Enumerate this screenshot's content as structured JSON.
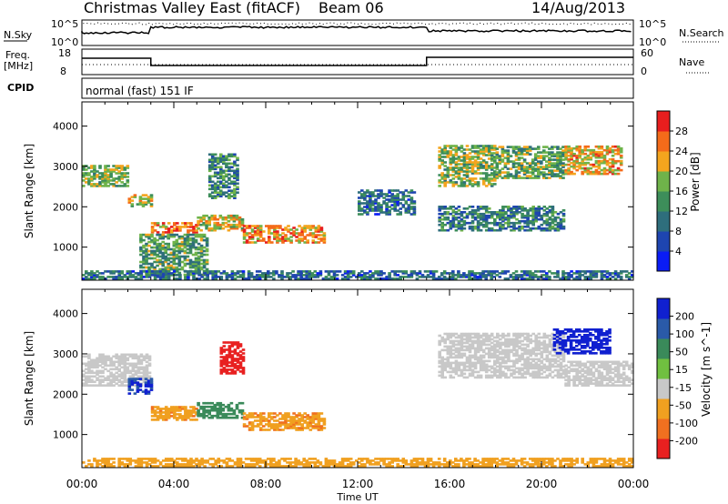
{
  "header": {
    "title": "Christmas Valley East (fitACF)",
    "beam": "Beam 06",
    "date": "14/Aug/2013"
  },
  "noise_panel": {
    "left_label": "N.Sky",
    "right_label": "N.Search",
    "left_ticks": [
      "10^5",
      "10^0"
    ],
    "right_ticks": [
      "10^5",
      "10^0"
    ]
  },
  "freq_panel": {
    "left_label": "Freq.",
    "left_unit": "[MHz]",
    "right_label": "Nave",
    "left_ticks": [
      "18",
      "8"
    ],
    "right_ticks": [
      "60",
      "0"
    ]
  },
  "cpid": {
    "label": "CPID",
    "value": "normal (fast) 151 IF"
  },
  "chart_data": [
    {
      "type": "heatmap",
      "name": "power",
      "ylabel": "Slant Range [km]",
      "xlabel": "Time UT",
      "x_ticks": [
        "00:00",
        "04:00",
        "08:00",
        "12:00",
        "16:00",
        "20:00",
        "00:00"
      ],
      "y_ticks": [
        1000,
        2000,
        3000,
        4000
      ],
      "ylim": [
        180,
        4600
      ],
      "colorbar": {
        "label": "Power [dB]",
        "ticks": [
          4,
          8,
          12,
          16,
          20,
          24,
          28
        ],
        "colors": [
          "#0a1cf5",
          "#1e45b0",
          "#2e6e7c",
          "#3d8e5a",
          "#6fb34a",
          "#f4a51e",
          "#f46b1a",
          "#e81e1e"
        ]
      },
      "regions": [
        {
          "t": [
            0.0,
            2.0
          ],
          "r": [
            2500,
            3000
          ],
          "level": 0.55
        },
        {
          "t": [
            2.0,
            3.0
          ],
          "r": [
            2000,
            2300
          ],
          "level": 0.6
        },
        {
          "t": [
            3.0,
            5.0
          ],
          "r": [
            1350,
            1600
          ],
          "level": 0.8
        },
        {
          "t": [
            5.0,
            7.0
          ],
          "r": [
            1400,
            1800
          ],
          "level": 0.65
        },
        {
          "t": [
            7.0,
            10.5
          ],
          "r": [
            1100,
            1550
          ],
          "level": 0.75
        },
        {
          "t": [
            5.5,
            6.8
          ],
          "r": [
            2200,
            3300
          ],
          "level": 0.4
        },
        {
          "t": [
            2.5,
            5.5
          ],
          "r": [
            300,
            1300
          ],
          "level": 0.45
        },
        {
          "t": [
            15.5,
            18.0
          ],
          "r": [
            2500,
            3500
          ],
          "level": 0.55
        },
        {
          "t": [
            18.0,
            21.0
          ],
          "r": [
            2700,
            3500
          ],
          "level": 0.5
        },
        {
          "t": [
            21.0,
            23.5
          ],
          "r": [
            2800,
            3500
          ],
          "level": 0.7
        },
        {
          "t": [
            15.5,
            21.0
          ],
          "r": [
            1400,
            2000
          ],
          "level": 0.35
        },
        {
          "t": [
            12.0,
            14.5
          ],
          "r": [
            1800,
            2400
          ],
          "level": 0.3
        },
        {
          "t": [
            0.0,
            24.0
          ],
          "r": [
            200,
            400
          ],
          "level": 0.3
        }
      ]
    },
    {
      "type": "heatmap",
      "name": "velocity",
      "ylabel": "Slant Range [km]",
      "xlabel": "Time UT",
      "x_ticks": [
        "00:00",
        "04:00",
        "08:00",
        "12:00",
        "16:00",
        "20:00",
        "00:00"
      ],
      "y_ticks": [
        1000,
        2000,
        3000,
        4000
      ],
      "ylim": [
        180,
        4600
      ],
      "colorbar": {
        "label": "Velocity [m s^-1]",
        "ticks": [
          200,
          100,
          50,
          15,
          -15,
          -50,
          -100,
          -200
        ],
        "colors": [
          "#1020d0",
          "#2a5aa8",
          "#3a8a5a",
          "#70c040",
          "#c8c8c8",
          "#f0a020",
          "#f07020",
          "#e82020"
        ]
      },
      "regions": [
        {
          "t": [
            0.0,
            3.0
          ],
          "r": [
            2200,
            3000
          ],
          "vel": 0
        },
        {
          "t": [
            3.0,
            5.0
          ],
          "r": [
            1350,
            1700
          ],
          "vel": -40
        },
        {
          "t": [
            5.0,
            7.0
          ],
          "r": [
            1400,
            1800
          ],
          "vel": 60
        },
        {
          "t": [
            7.0,
            10.5
          ],
          "r": [
            1100,
            1550
          ],
          "vel": -40
        },
        {
          "t": [
            6.0,
            7.0
          ],
          "r": [
            2500,
            3300
          ],
          "vel": -150
        },
        {
          "t": [
            2.0,
            3.0
          ],
          "r": [
            2000,
            2400
          ],
          "vel": 150
        },
        {
          "t": [
            15.5,
            21.0
          ],
          "r": [
            2400,
            3500
          ],
          "vel": 0
        },
        {
          "t": [
            20.5,
            23.0
          ],
          "r": [
            3000,
            3600
          ],
          "vel": 200
        },
        {
          "t": [
            21.0,
            24.0
          ],
          "r": [
            2200,
            2800
          ],
          "vel": 0
        },
        {
          "t": [
            0.0,
            24.0
          ],
          "r": [
            200,
            400
          ],
          "vel": -30
        }
      ]
    }
  ]
}
